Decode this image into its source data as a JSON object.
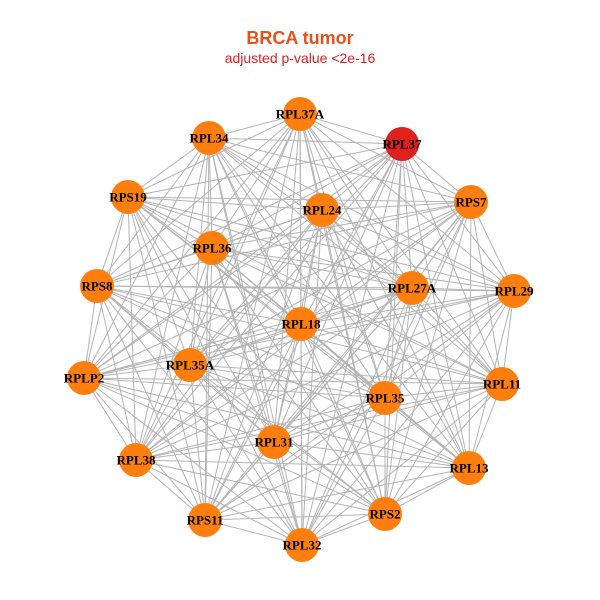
{
  "title": "BRCA tumor",
  "subtitle": "adjusted p-value <2e-16",
  "colors": {
    "title": "#e8501c",
    "subtitle": "#e02020",
    "node_default": "#ff7f0e",
    "node_highlight": "#e0201c",
    "edge": "#b4b4b4"
  },
  "network": {
    "nodes": [
      {
        "id": "RPL37A",
        "highlight": false
      },
      {
        "id": "RPL37",
        "highlight": true
      },
      {
        "id": "RPL34",
        "highlight": false
      },
      {
        "id": "RPS7",
        "highlight": false
      },
      {
        "id": "RPS19",
        "highlight": false
      },
      {
        "id": "RPL24",
        "highlight": false
      },
      {
        "id": "RPL36",
        "highlight": false
      },
      {
        "id": "RPL27A",
        "highlight": false
      },
      {
        "id": "RPS8",
        "highlight": false
      },
      {
        "id": "RPL29",
        "highlight": false
      },
      {
        "id": "RPL18",
        "highlight": false
      },
      {
        "id": "RPL35A",
        "highlight": false
      },
      {
        "id": "RPLP2",
        "highlight": false
      },
      {
        "id": "RPL11",
        "highlight": false
      },
      {
        "id": "RPL35",
        "highlight": false
      },
      {
        "id": "RPL31",
        "highlight": false
      },
      {
        "id": "RPL38",
        "highlight": false
      },
      {
        "id": "RPL13",
        "highlight": false
      },
      {
        "id": "RPS2",
        "highlight": false
      },
      {
        "id": "RPS11",
        "highlight": false
      },
      {
        "id": "RPL32",
        "highlight": false
      }
    ],
    "edges": "complete"
  }
}
